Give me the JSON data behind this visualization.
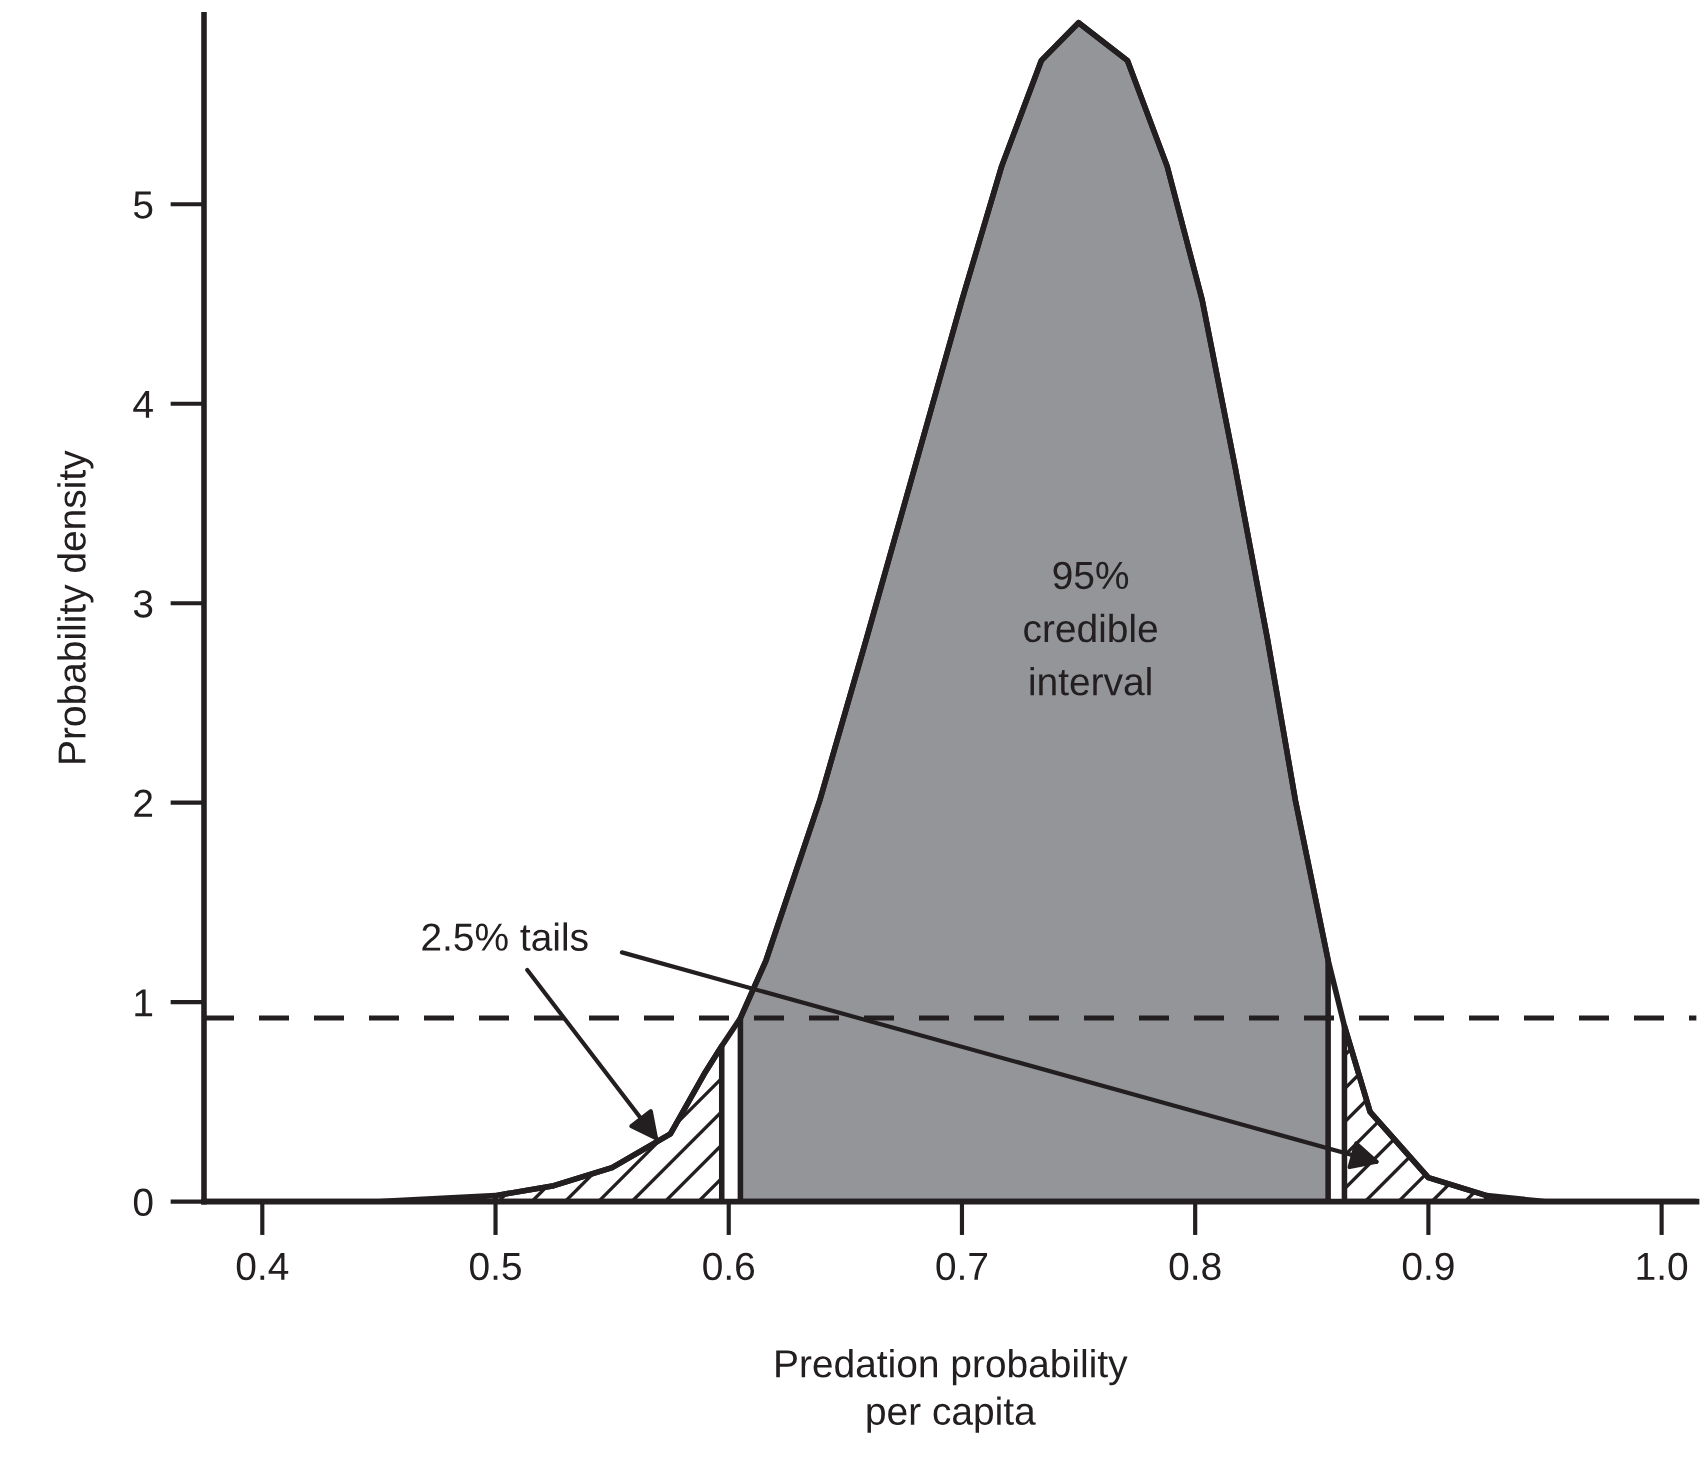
{
  "chart_data": {
    "type": "line",
    "xlabel": "Predation probability\nper capita",
    "ylabel": "Probability density",
    "xlim": [
      0.375,
      1.015
    ],
    "ylim": [
      0,
      5.95
    ],
    "xticks": [
      0.4,
      0.5,
      0.6,
      0.7,
      0.8,
      0.9,
      {
        "value": 1.0,
        "label": "1.0"
      }
    ],
    "yticks": [
      0,
      1,
      2,
      3,
      4,
      5
    ],
    "grid": false,
    "series": [
      {
        "color": "#231f20",
        "x": [
          0.375,
          0.45,
          0.5,
          0.525,
          0.55,
          0.575,
          0.59,
          0.597,
          0.605,
          0.616,
          0.639,
          0.659,
          0.68,
          0.7,
          0.717,
          0.734,
          0.75,
          0.771,
          0.788,
          0.803,
          0.817,
          0.831,
          0.843,
          0.857,
          0.864,
          0.875,
          0.9,
          0.925,
          0.95,
          1.015
        ],
        "values": [
          0,
          0,
          0.03,
          0.08,
          0.17,
          0.34,
          0.65,
          0.78,
          0.92,
          1.21,
          2.01,
          2.82,
          3.69,
          4.52,
          5.19,
          5.72,
          5.91,
          5.72,
          5.19,
          4.52,
          3.69,
          2.82,
          2.01,
          1.21,
          0.88,
          0.45,
          0.12,
          0.03,
          0,
          0
        ]
      },
      {
        "type": "area",
        "color": "#231f20",
        "x": [
          0.5,
          0.525,
          0.55,
          0.575,
          0.59,
          0.597
        ],
        "values": [
          0.03,
          0.08,
          0.17,
          0.34,
          0.65,
          0.78
        ]
      },
      {
        "type": "area",
        "color": "#939598",
        "x": [
          0.605,
          0.616,
          0.639,
          0.659,
          0.68,
          0.7,
          0.717,
          0.734,
          0.75,
          0.771,
          0.788,
          0.803,
          0.817,
          0.831,
          0.843,
          0.857
        ],
        "values": [
          0.92,
          1.21,
          2.01,
          2.82,
          3.69,
          4.52,
          5.19,
          5.72,
          5.91,
          5.72,
          5.19,
          4.52,
          3.69,
          2.82,
          2.01,
          1.21
        ]
      },
      {
        "type": "area",
        "color": "#231f20",
        "x": [
          0.864,
          0.875,
          0.9,
          0.925
        ],
        "values": [
          0.88,
          0.45,
          0.12,
          0.03
        ]
      }
    ],
    "ref_lines": [
      {
        "axis": "y",
        "value": 0.92,
        "line_style": "dashed",
        "color": "#231f20"
      }
    ],
    "annotations": [
      {
        "text": "2.5% tails",
        "x": 0.57,
        "y": 0.3
      },
      "95%\ncredible\ninterval"
    ]
  }
}
